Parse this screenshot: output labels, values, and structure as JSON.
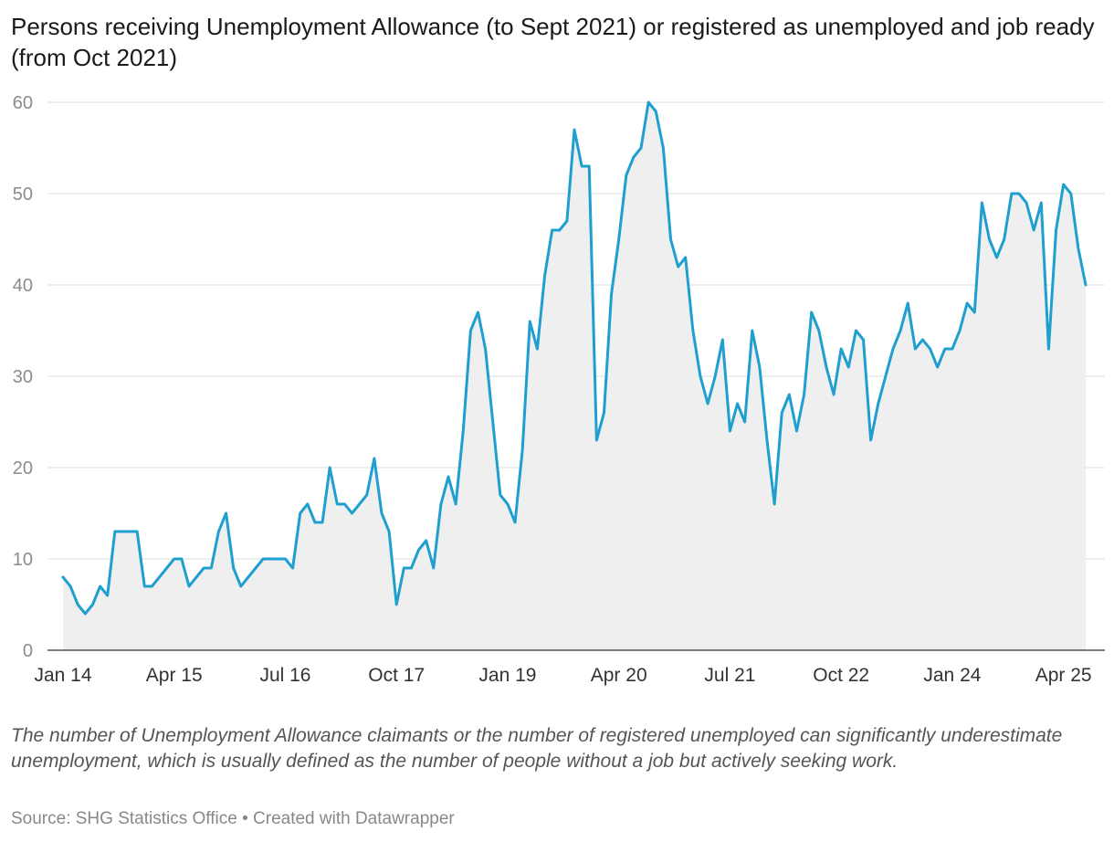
{
  "title": "Persons receiving Unemployment Allowance (to Sept 2021) or registered as unemployed and job ready (from Oct 2021)",
  "note": "The number of Unemployment Allowance claimants or the number of registered unemployed can significantly underestimate unemployment, which is usually defined as the number of people without a job but actively seeking work.",
  "source": "Source: SHG Statistics Office",
  "separator": "•",
  "credit": "Created with Datawrapper",
  "colors": {
    "line": "#1f9fcf",
    "area": "#efefef",
    "grid": "#dddddd"
  },
  "chart_data": {
    "type": "area",
    "ylim": [
      0,
      60
    ],
    "yticks": [
      0,
      10,
      20,
      30,
      40,
      50,
      60
    ],
    "xticks": [
      "Jan 14",
      "Apr 15",
      "Jul 16",
      "Oct 17",
      "Jan 19",
      "Apr 20",
      "Jul 21",
      "Oct 22",
      "Jan 24",
      "Apr 25"
    ],
    "x_start": "Jan 14",
    "x_interval": "monthly",
    "grid": true,
    "legend": "none",
    "values": [
      8,
      7,
      5,
      4,
      5,
      7,
      6,
      13,
      13,
      13,
      13,
      7,
      7,
      8,
      9,
      10,
      10,
      7,
      8,
      9,
      9,
      13,
      15,
      9,
      7,
      8,
      9,
      10,
      10,
      10,
      10,
      9,
      15,
      16,
      14,
      14,
      20,
      16,
      16,
      15,
      16,
      17,
      21,
      15,
      13,
      5,
      9,
      9,
      11,
      12,
      9,
      16,
      19,
      16,
      24,
      35,
      37,
      33,
      25,
      17,
      16,
      14,
      22,
      36,
      33,
      41,
      46,
      46,
      47,
      57,
      53,
      53,
      23,
      26,
      39,
      45,
      52,
      54,
      55,
      60,
      59,
      55,
      45,
      42,
      43,
      35,
      30,
      27,
      30,
      34,
      24,
      27,
      25,
      35,
      31,
      23,
      16,
      26,
      28,
      24,
      28,
      37,
      35,
      31,
      28,
      33,
      31,
      35,
      34,
      23,
      27,
      30,
      33,
      35,
      38,
      33,
      34,
      33,
      31,
      33,
      33,
      35,
      38,
      37,
      49,
      45,
      43,
      45,
      50,
      50,
      49,
      46,
      49,
      33,
      46,
      51,
      50,
      44,
      40
    ]
  }
}
